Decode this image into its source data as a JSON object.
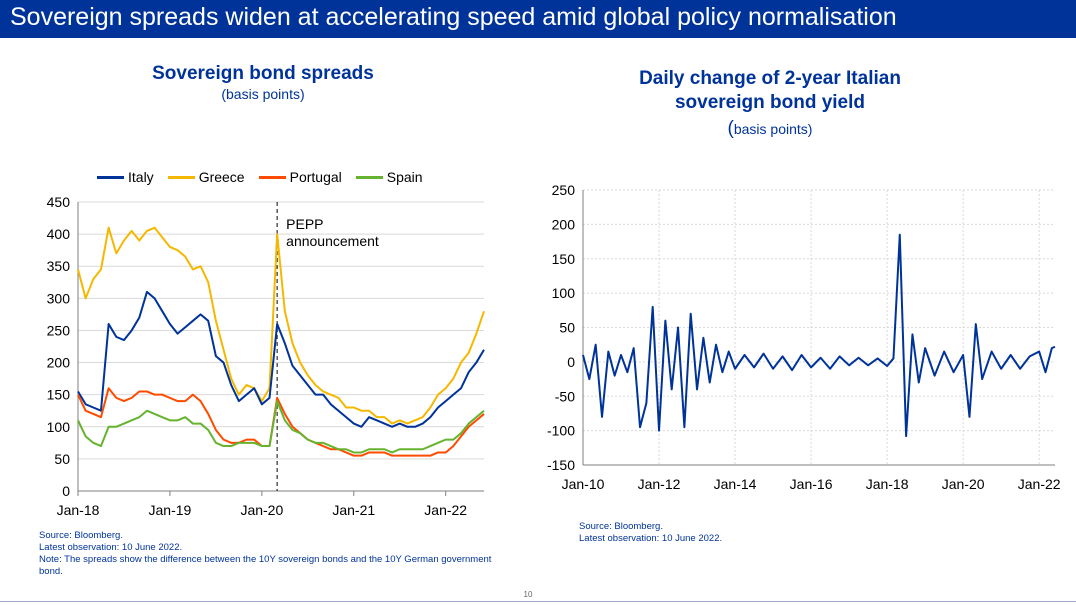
{
  "header": {
    "title": "Sovereign spreads widen at accelerating speed amid global policy normalisation"
  },
  "colors": {
    "banner": "#003399",
    "title_text": "#003399"
  },
  "left": {
    "title": "Sovereign bond spreads",
    "subtitle": "(basis points)",
    "annotation": [
      "PEPP",
      "announcement"
    ],
    "footnotes": {
      "source": "Source: Bloomberg.",
      "latest": "Latest observation: 10 June 2022.",
      "note": "Note: The spreads show the difference between the 10Y sovereign bonds and the 10Y German government bond."
    }
  },
  "right": {
    "title_line1": "Daily change of 2-year Italian",
    "title_line2": "sovereign bond yield",
    "subtitle_paren": "(",
    "subtitle_text": "basis points)",
    "footnotes": {
      "source": "Source: Bloomberg.",
      "latest": "Latest observation: 10 June 2022."
    }
  },
  "page_number": "10",
  "chart_data": [
    {
      "type": "line",
      "title": "Sovereign bond spreads",
      "subtitle": "(basis points)",
      "xlabel": "",
      "ylabel": "",
      "x_ticks": [
        "Jan-18",
        "Jan-19",
        "Jan-20",
        "Jan-21",
        "Jan-22"
      ],
      "y_ticks": [
        0,
        50,
        100,
        150,
        200,
        250,
        300,
        350,
        400,
        450
      ],
      "ylim": [
        0,
        450
      ],
      "xlim": [
        "2018-01",
        "2022-06"
      ],
      "grid": "horizontal",
      "legend": "top",
      "annotation": {
        "label": "PEPP announcement",
        "x": "2020-03"
      },
      "series": [
        {
          "name": "Italy",
          "color": "#003399",
          "x": [
            "2018-01",
            "2018-02",
            "2018-03",
            "2018-04",
            "2018-05",
            "2018-06",
            "2018-07",
            "2018-08",
            "2018-09",
            "2018-10",
            "2018-11",
            "2018-12",
            "2019-01",
            "2019-02",
            "2019-03",
            "2019-04",
            "2019-05",
            "2019-06",
            "2019-07",
            "2019-08",
            "2019-09",
            "2019-10",
            "2019-11",
            "2019-12",
            "2020-01",
            "2020-02",
            "2020-03",
            "2020-04",
            "2020-05",
            "2020-06",
            "2020-07",
            "2020-08",
            "2020-09",
            "2020-10",
            "2020-11",
            "2020-12",
            "2021-01",
            "2021-02",
            "2021-03",
            "2021-04",
            "2021-05",
            "2021-06",
            "2021-07",
            "2021-08",
            "2021-09",
            "2021-10",
            "2021-11",
            "2021-12",
            "2022-01",
            "2022-02",
            "2022-03",
            "2022-04",
            "2022-05",
            "2022-06"
          ],
          "values": [
            155,
            135,
            130,
            125,
            260,
            240,
            235,
            250,
            270,
            310,
            300,
            280,
            260,
            245,
            255,
            265,
            275,
            265,
            210,
            200,
            165,
            140,
            150,
            160,
            135,
            145,
            260,
            230,
            195,
            180,
            165,
            150,
            150,
            135,
            125,
            115,
            105,
            100,
            115,
            110,
            105,
            100,
            105,
            100,
            100,
            105,
            115,
            130,
            140,
            150,
            160,
            185,
            200,
            220
          ]
        },
        {
          "name": "Greece",
          "color": "#f5b800",
          "x": [
            "2018-01",
            "2018-02",
            "2018-03",
            "2018-04",
            "2018-05",
            "2018-06",
            "2018-07",
            "2018-08",
            "2018-09",
            "2018-10",
            "2018-11",
            "2018-12",
            "2019-01",
            "2019-02",
            "2019-03",
            "2019-04",
            "2019-05",
            "2019-06",
            "2019-07",
            "2019-08",
            "2019-09",
            "2019-10",
            "2019-11",
            "2019-12",
            "2020-01",
            "2020-02",
            "2020-03",
            "2020-04",
            "2020-05",
            "2020-06",
            "2020-07",
            "2020-08",
            "2020-09",
            "2020-10",
            "2020-11",
            "2020-12",
            "2021-01",
            "2021-02",
            "2021-03",
            "2021-04",
            "2021-05",
            "2021-06",
            "2021-07",
            "2021-08",
            "2021-09",
            "2021-10",
            "2021-11",
            "2021-12",
            "2022-01",
            "2022-02",
            "2022-03",
            "2022-04",
            "2022-05",
            "2022-06"
          ],
          "values": [
            345,
            300,
            330,
            345,
            410,
            370,
            390,
            405,
            390,
            405,
            410,
            395,
            380,
            375,
            365,
            345,
            350,
            325,
            265,
            220,
            175,
            150,
            165,
            160,
            140,
            160,
            400,
            280,
            230,
            200,
            180,
            165,
            155,
            150,
            145,
            130,
            130,
            125,
            125,
            115,
            115,
            105,
            110,
            105,
            110,
            115,
            130,
            150,
            160,
            175,
            200,
            215,
            245,
            280
          ]
        },
        {
          "name": "Portugal",
          "color": "#ff4b00",
          "x": [
            "2018-01",
            "2018-02",
            "2018-03",
            "2018-04",
            "2018-05",
            "2018-06",
            "2018-07",
            "2018-08",
            "2018-09",
            "2018-10",
            "2018-11",
            "2018-12",
            "2019-01",
            "2019-02",
            "2019-03",
            "2019-04",
            "2019-05",
            "2019-06",
            "2019-07",
            "2019-08",
            "2019-09",
            "2019-10",
            "2019-11",
            "2019-12",
            "2020-01",
            "2020-02",
            "2020-03",
            "2020-04",
            "2020-05",
            "2020-06",
            "2020-07",
            "2020-08",
            "2020-09",
            "2020-10",
            "2020-11",
            "2020-12",
            "2021-01",
            "2021-02",
            "2021-03",
            "2021-04",
            "2021-05",
            "2021-06",
            "2021-07",
            "2021-08",
            "2021-09",
            "2021-10",
            "2021-11",
            "2021-12",
            "2022-01",
            "2022-02",
            "2022-03",
            "2022-04",
            "2022-05",
            "2022-06"
          ],
          "values": [
            150,
            125,
            120,
            115,
            160,
            145,
            140,
            145,
            155,
            155,
            150,
            150,
            145,
            140,
            140,
            150,
            140,
            120,
            95,
            80,
            75,
            75,
            80,
            80,
            70,
            70,
            145,
            120,
            100,
            90,
            80,
            75,
            70,
            65,
            65,
            60,
            55,
            55,
            60,
            60,
            60,
            55,
            55,
            55,
            55,
            55,
            55,
            60,
            60,
            70,
            85,
            100,
            110,
            120
          ]
        },
        {
          "name": "Spain",
          "color": "#65b32e",
          "x": [
            "2018-01",
            "2018-02",
            "2018-03",
            "2018-04",
            "2018-05",
            "2018-06",
            "2018-07",
            "2018-08",
            "2018-09",
            "2018-10",
            "2018-11",
            "2018-12",
            "2019-01",
            "2019-02",
            "2019-03",
            "2019-04",
            "2019-05",
            "2019-06",
            "2019-07",
            "2019-08",
            "2019-09",
            "2019-10",
            "2019-11",
            "2019-12",
            "2020-01",
            "2020-02",
            "2020-03",
            "2020-04",
            "2020-05",
            "2020-06",
            "2020-07",
            "2020-08",
            "2020-09",
            "2020-10",
            "2020-11",
            "2020-12",
            "2021-01",
            "2021-02",
            "2021-03",
            "2021-04",
            "2021-05",
            "2021-06",
            "2021-07",
            "2021-08",
            "2021-09",
            "2021-10",
            "2021-11",
            "2021-12",
            "2022-01",
            "2022-02",
            "2022-03",
            "2022-04",
            "2022-05",
            "2022-06"
          ],
          "values": [
            110,
            85,
            75,
            70,
            100,
            100,
            105,
            110,
            115,
            125,
            120,
            115,
            110,
            110,
            115,
            105,
            105,
            95,
            75,
            70,
            70,
            75,
            75,
            75,
            70,
            70,
            140,
            110,
            95,
            90,
            80,
            75,
            75,
            70,
            65,
            65,
            60,
            60,
            65,
            65,
            65,
            60,
            65,
            65,
            65,
            65,
            70,
            75,
            80,
            80,
            90,
            105,
            115,
            125
          ]
        }
      ]
    },
    {
      "type": "line",
      "title": "Daily change of 2-year Italian sovereign bond yield",
      "subtitle": "(basis points)",
      "xlabel": "",
      "ylabel": "",
      "x_ticks": [
        "Jan-10",
        "Jan-12",
        "Jan-14",
        "Jan-16",
        "Jan-18",
        "Jan-20",
        "Jan-22"
      ],
      "y_ticks": [
        -150,
        -100,
        -50,
        0,
        50,
        100,
        150,
        200,
        250
      ],
      "ylim": [
        -150,
        250
      ],
      "xlim": [
        "2010-01",
        "2022-06"
      ],
      "grid": "both",
      "legend": "none",
      "series": [
        {
          "name": "",
          "color": "#003399",
          "x": [
            "2010-01",
            "2010-03",
            "2010-05",
            "2010-07",
            "2010-09",
            "2010-11",
            "2011-01",
            "2011-03",
            "2011-05",
            "2011-07",
            "2011-09",
            "2011-11",
            "2012-01",
            "2012-03",
            "2012-05",
            "2012-07",
            "2012-09",
            "2012-11",
            "2013-01",
            "2013-03",
            "2013-05",
            "2013-07",
            "2013-09",
            "2013-11",
            "2014-01",
            "2014-04",
            "2014-07",
            "2014-10",
            "2015-01",
            "2015-04",
            "2015-07",
            "2015-10",
            "2016-01",
            "2016-04",
            "2016-07",
            "2016-10",
            "2017-01",
            "2017-04",
            "2017-07",
            "2017-10",
            "2018-01",
            "2018-03",
            "2018-05",
            "2018-07",
            "2018-09",
            "2018-11",
            "2019-01",
            "2019-04",
            "2019-07",
            "2019-10",
            "2020-01",
            "2020-03",
            "2020-05",
            "2020-07",
            "2020-10",
            "2021-01",
            "2021-04",
            "2021-07",
            "2021-10",
            "2022-01",
            "2022-03",
            "2022-05",
            "2022-06"
          ],
          "values": [
            10,
            -25,
            25,
            -80,
            15,
            -20,
            10,
            -15,
            20,
            -95,
            -60,
            80,
            -100,
            60,
            -40,
            50,
            -95,
            70,
            -40,
            35,
            -30,
            25,
            -15,
            15,
            -10,
            10,
            -8,
            12,
            -10,
            8,
            -12,
            10,
            -8,
            6,
            -10,
            8,
            -5,
            6,
            -5,
            5,
            -6,
            5,
            185,
            -108,
            40,
            -30,
            20,
            -20,
            15,
            -15,
            10,
            -80,
            55,
            -25,
            15,
            -10,
            10,
            -10,
            8,
            15,
            -15,
            20,
            22
          ]
        }
      ]
    }
  ]
}
